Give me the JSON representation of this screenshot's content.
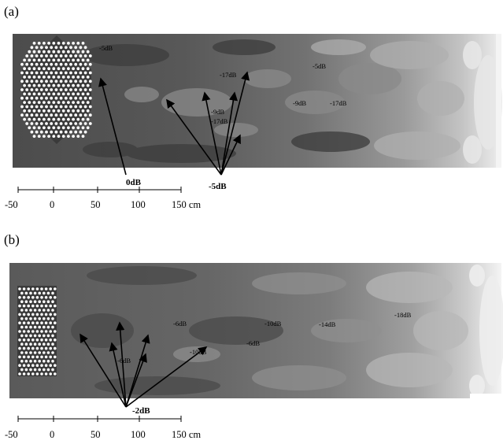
{
  "panels": [
    {
      "label": "(a)",
      "labels": [
        "-5dB",
        "-17dB",
        "-5dB",
        "-9dB",
        "-17dB",
        "-9dB",
        "-17dB",
        "0dB",
        "-5dB"
      ],
      "axis": {
        "ticks": [
          "-50",
          "0",
          "50",
          "100",
          "150 cm"
        ]
      }
    },
    {
      "label": "(b)",
      "labels": [
        "-6dB",
        "-10dB",
        "-14dB",
        "-18dB",
        "-10dB",
        "-6dB",
        "-6dB",
        "-2dB"
      ],
      "axis": {
        "ticks": [
          "-50",
          "0",
          "50",
          "100",
          "150 cm"
        ]
      }
    }
  ],
  "colors": {
    "field_dark": "#505050",
    "field_mid": "#7a7a7a",
    "field_light": "#b4b4b4",
    "field_white": "#f2f2f2",
    "crystal_dots": "#ffffff"
  }
}
